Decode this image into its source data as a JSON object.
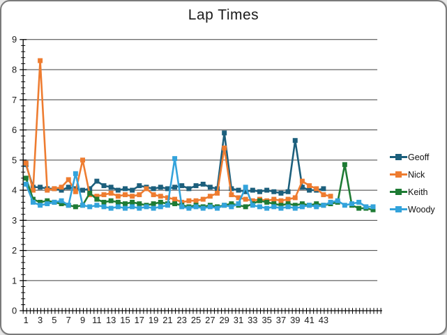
{
  "chart_data": {
    "type": "line",
    "title": "Lap Times",
    "legend_position": "right",
    "grid": "horizontal",
    "colors": {
      "gridline": "#3f3f3f",
      "axis": "#000000",
      "text": "#1a1a1a"
    },
    "y_axis": {
      "min": 0,
      "max": 9,
      "major_interval": 1,
      "minor_interval": 0.2,
      "tick_labels": [
        "0",
        "1",
        "2",
        "3",
        "4",
        "5",
        "6",
        "7",
        "8",
        "9"
      ]
    },
    "x_axis": {
      "categories_are_laps": true,
      "label_interval": 2,
      "tick_labels": [
        "1",
        "3",
        "5",
        "7",
        "9",
        "11",
        "13",
        "15",
        "17",
        "19",
        "21",
        "23",
        "25",
        "27",
        "29",
        "31",
        "33",
        "35",
        "37",
        "39",
        "41",
        "43"
      ]
    },
    "series": [
      {
        "name": "Geoff",
        "color": "#1C5F7C",
        "marker": "square",
        "values": [
          4.85,
          4.1,
          4.1,
          4.05,
          4.05,
          4.0,
          4.1,
          4.05,
          4.0,
          4.05,
          4.3,
          4.15,
          4.1,
          4.0,
          4.05,
          4.0,
          4.15,
          4.1,
          4.05,
          4.1,
          4.05,
          4.1,
          4.15,
          4.05,
          4.15,
          4.2,
          4.1,
          4.05,
          5.9,
          4.05,
          4.0,
          3.95,
          4.0,
          3.95,
          4.0,
          3.95,
          3.9,
          3.95,
          5.65,
          4.1,
          4.0,
          4.0,
          4.05
        ]
      },
      {
        "name": "Nick",
        "color": "#EE7C30",
        "marker": "square",
        "values": [
          4.9,
          4.0,
          8.3,
          4.0,
          4.05,
          4.1,
          4.35,
          3.95,
          5.0,
          3.85,
          3.8,
          3.85,
          3.9,
          3.8,
          3.85,
          3.8,
          3.85,
          4.05,
          3.85,
          3.8,
          3.75,
          3.7,
          3.6,
          3.65,
          3.65,
          3.7,
          3.8,
          3.9,
          5.4,
          3.85,
          3.75,
          3.7,
          3.65,
          3.7,
          3.65,
          3.7,
          3.65,
          3.7,
          3.75,
          4.3,
          4.15,
          4.05,
          3.85,
          3.8
        ]
      },
      {
        "name": "Keith",
        "color": "#1E7B34",
        "marker": "square",
        "values": [
          4.4,
          3.7,
          3.6,
          3.65,
          3.6,
          3.55,
          3.5,
          3.45,
          3.5,
          3.9,
          3.7,
          3.6,
          3.65,
          3.6,
          3.55,
          3.6,
          3.55,
          3.5,
          3.55,
          3.6,
          3.55,
          3.55,
          3.5,
          3.45,
          3.5,
          3.45,
          3.5,
          3.45,
          3.5,
          3.55,
          3.5,
          3.45,
          3.55,
          3.65,
          3.6,
          3.55,
          3.5,
          3.55,
          3.5,
          3.55,
          3.5,
          3.55,
          3.5,
          3.55,
          3.6,
          4.85,
          3.5,
          3.4,
          3.4,
          3.35
        ]
      },
      {
        "name": "Woody",
        "color": "#33A3DB",
        "marker": "square",
        "values": [
          4.2,
          3.6,
          3.5,
          3.55,
          3.6,
          3.65,
          3.5,
          4.55,
          3.5,
          3.45,
          3.5,
          3.45,
          3.4,
          3.45,
          3.4,
          3.45,
          3.4,
          3.45,
          3.4,
          3.45,
          3.5,
          5.05,
          3.45,
          3.4,
          3.45,
          3.4,
          3.45,
          3.4,
          3.5,
          3.45,
          3.55,
          4.1,
          3.5,
          3.45,
          3.4,
          3.45,
          3.4,
          3.45,
          3.4,
          3.45,
          3.5,
          3.45,
          3.5,
          3.6,
          3.65,
          3.5,
          3.55,
          3.6,
          3.45,
          3.45
        ]
      }
    ]
  }
}
